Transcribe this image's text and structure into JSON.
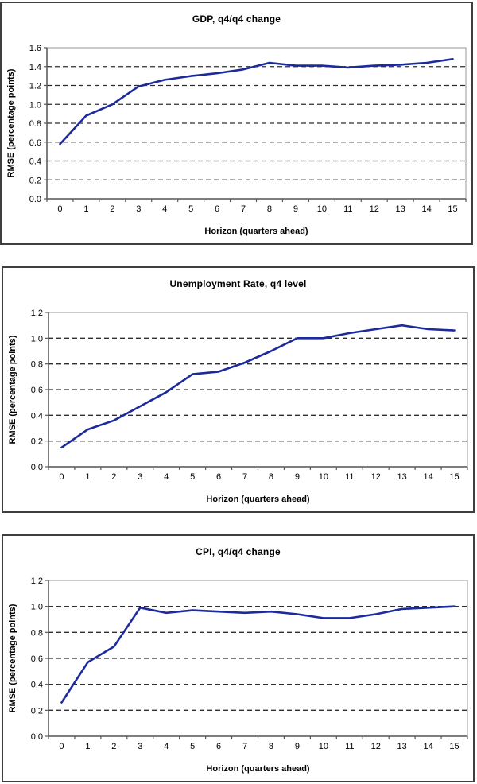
{
  "style": {
    "panel_border": "#3f3f3f",
    "plot_frame": "#a8a8a8",
    "axis_color": "#595959",
    "grid_color": "#2e2e2e",
    "line_color": "#1c2b9c"
  },
  "chart_data": [
    {
      "type": "line",
      "title": "GDP, q4/q4 change",
      "xlabel": "Horizon (quarters ahead)",
      "ylabel": "RMSE (percentage points)",
      "x": [
        0,
        1,
        2,
        3,
        4,
        5,
        6,
        7,
        8,
        9,
        10,
        11,
        12,
        13,
        14,
        15
      ],
      "values": [
        0.58,
        0.88,
        1.0,
        1.19,
        1.26,
        1.3,
        1.33,
        1.37,
        1.44,
        1.41,
        1.41,
        1.39,
        1.41,
        1.42,
        1.44,
        1.48
      ],
      "ylim": [
        0,
        1.6
      ],
      "ytick_step": 0.2,
      "grid": "horizontal-dashed",
      "legend": "none",
      "line_color": "#1c2b9c"
    },
    {
      "type": "line",
      "title": "Unemployment Rate, q4 level",
      "xlabel": "Horizon (quarters ahead)",
      "ylabel": "RMSE (percentage points)",
      "x": [
        0,
        1,
        2,
        3,
        4,
        5,
        6,
        7,
        8,
        9,
        10,
        11,
        12,
        13,
        14,
        15
      ],
      "values": [
        0.15,
        0.29,
        0.36,
        0.47,
        0.58,
        0.72,
        0.74,
        0.81,
        0.9,
        1.0,
        1.0,
        1.04,
        1.07,
        1.1,
        1.07,
        1.06
      ],
      "ylim": [
        0,
        1.2
      ],
      "ytick_step": 0.2,
      "grid": "horizontal-dashed",
      "legend": "none",
      "line_color": "#1c2b9c"
    },
    {
      "type": "line",
      "title": "CPI, q4/q4 change",
      "xlabel": "Horizon (quarters ahead)",
      "ylabel": "RMSE (percentage points)",
      "x": [
        0,
        1,
        2,
        3,
        4,
        5,
        6,
        7,
        8,
        9,
        10,
        11,
        12,
        13,
        14,
        15
      ],
      "values": [
        0.26,
        0.57,
        0.69,
        0.99,
        0.95,
        0.97,
        0.96,
        0.95,
        0.96,
        0.94,
        0.91,
        0.91,
        0.94,
        0.98,
        0.99,
        1.0
      ],
      "ylim": [
        0,
        1.2
      ],
      "ytick_step": 0.2,
      "grid": "horizontal-dashed",
      "legend": "none",
      "line_color": "#1c2b9c"
    }
  ]
}
